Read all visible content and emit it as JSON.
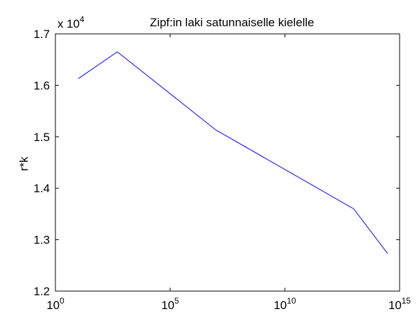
{
  "chart_data": {
    "type": "line",
    "title": "Zipf:in laki satunnaiselle kielelle",
    "xlabel": "",
    "ylabel": "r*k",
    "x_scale": "log",
    "xlim": [
      1,
      1000000000000000.0
    ],
    "ylim": [
      12000,
      17000
    ],
    "y_multiplier_label": {
      "base": "x 10",
      "exp": "4"
    },
    "x_ticks": [
      {
        "value": 1,
        "base": "10",
        "exp": "0"
      },
      {
        "value": 100000,
        "base": "10",
        "exp": "5"
      },
      {
        "value": 10000000000,
        "base": "10",
        "exp": "10"
      },
      {
        "value": 1000000000000000,
        "base": "10",
        "exp": "15"
      }
    ],
    "y_ticks": [
      {
        "value": 12000,
        "label": "1.2"
      },
      {
        "value": 13000,
        "label": "1.3"
      },
      {
        "value": 14000,
        "label": "1.4"
      },
      {
        "value": 15000,
        "label": "1.5"
      },
      {
        "value": 16000,
        "label": "1.6"
      },
      {
        "value": 17000,
        "label": "1.7"
      }
    ],
    "grid": false,
    "line_color": "#0000ff",
    "series": [
      {
        "x": [
          10,
          500,
          10000000,
          10000000000000,
          300000000000000
        ],
        "y": [
          16130,
          16650,
          15130,
          13600,
          12730
        ]
      }
    ]
  }
}
